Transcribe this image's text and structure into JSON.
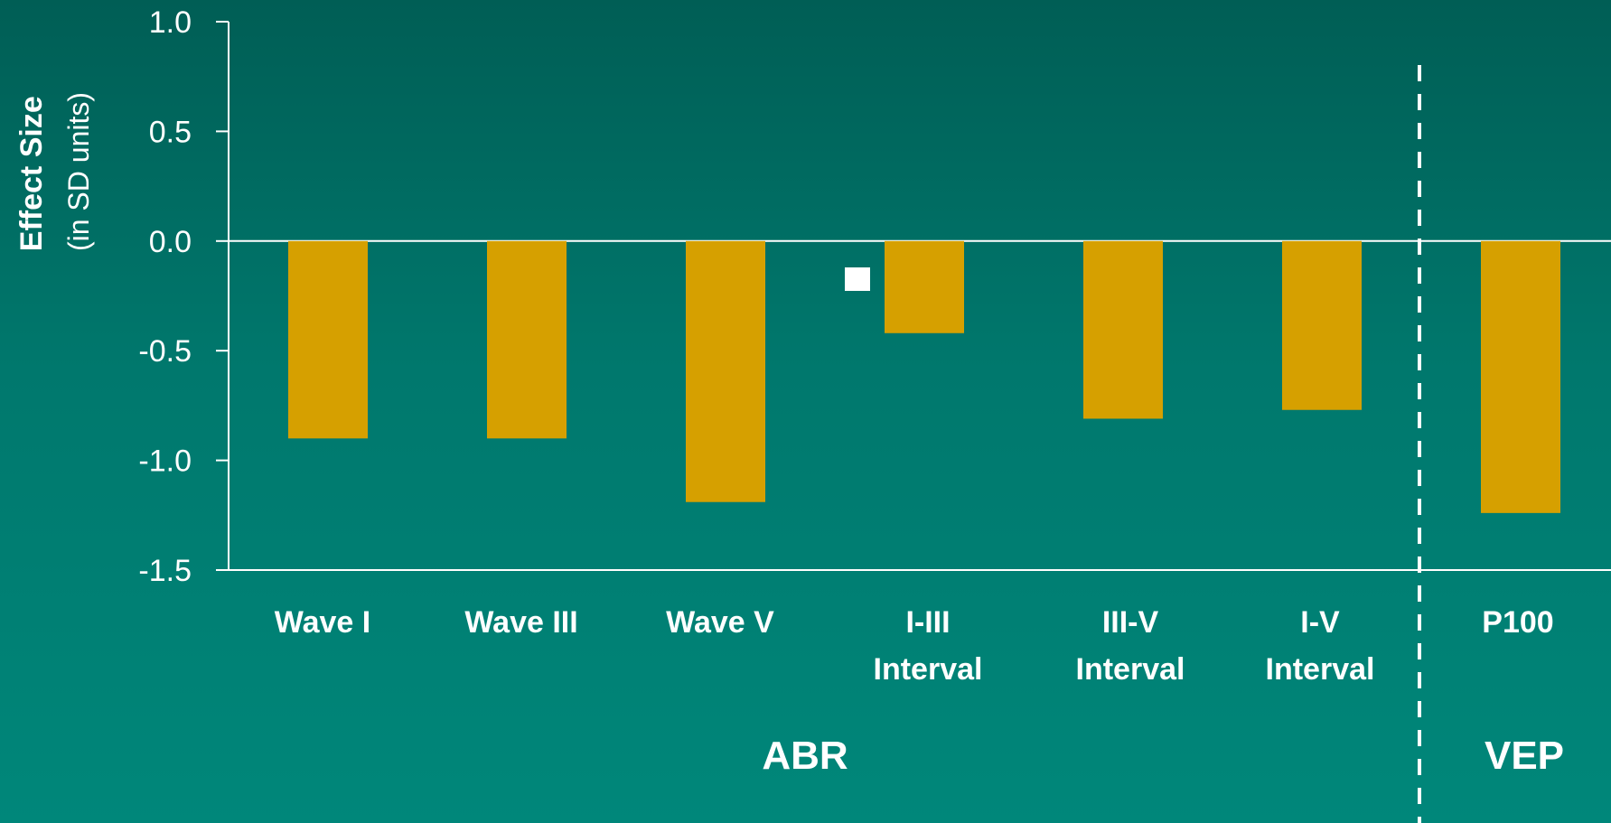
{
  "chart_data": {
    "type": "bar",
    "title": "",
    "ylabel": "Effect Size",
    "ylabel_sub": "(in SD units)",
    "xlabel": "",
    "ylim": [
      -1.5,
      1.0
    ],
    "yticks": [
      {
        "value": 1.0,
        "label": "1.0"
      },
      {
        "value": 0.5,
        "label": "0.5"
      },
      {
        "value": 0.0,
        "label": "0.0"
      },
      {
        "value": -0.5,
        "label": "-0.5"
      },
      {
        "value": -1.0,
        "label": "-1.0"
      },
      {
        "value": -1.5,
        "label": "-1.5"
      }
    ],
    "categories": [
      {
        "line1": "Wave I",
        "line2": ""
      },
      {
        "line1": "Wave III",
        "line2": ""
      },
      {
        "line1": "Wave V",
        "line2": ""
      },
      {
        "line1": "I-III",
        "line2": "Interval"
      },
      {
        "line1": "III-V",
        "line2": "Interval"
      },
      {
        "line1": "I-V",
        "line2": "Interval"
      },
      {
        "line1": "P100",
        "line2": ""
      }
    ],
    "values": [
      -0.9,
      -0.9,
      -1.19,
      -0.42,
      -0.81,
      -0.77,
      -1.24
    ],
    "bar_color": "#D6A000",
    "groups": [
      {
        "label": "ABR"
      },
      {
        "label": "VEP"
      }
    ],
    "grid": false,
    "legend": "none"
  }
}
